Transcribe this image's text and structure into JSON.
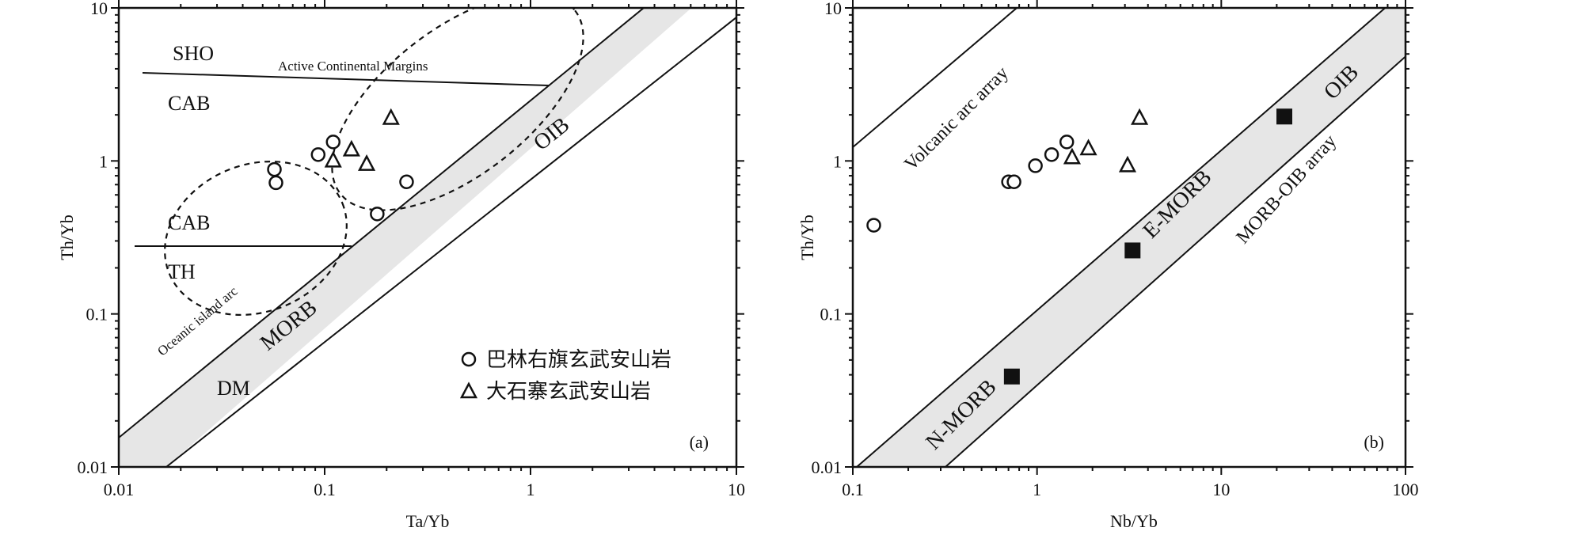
{
  "chart_data": [
    {
      "type": "scatter",
      "panel_label": "(a)",
      "xlabel": "Ta/Yb",
      "ylabel": "Th/Yb",
      "xscale": "log",
      "yscale": "log",
      "xlim": [
        0.01,
        10
      ],
      "ylim": [
        0.01,
        10
      ],
      "xticks": [
        "0.01",
        "0.1",
        "1",
        "10"
      ],
      "yticks": [
        "0.01",
        "0.1",
        "1",
        "10"
      ],
      "grid": false,
      "legend_position": "bottom-right",
      "series": [
        {
          "name": "巴林右旗玄武安山岩",
          "marker": "circle",
          "points": [
            [
              0.057,
              0.88
            ],
            [
              0.058,
              0.72
            ],
            [
              0.093,
              1.1
            ],
            [
              0.11,
              1.33
            ],
            [
              0.18,
              0.45
            ],
            [
              0.25,
              0.73
            ]
          ]
        },
        {
          "name": "大石寨玄武安山岩",
          "marker": "triangle",
          "points": [
            [
              0.11,
              1.0
            ],
            [
              0.135,
              1.18
            ],
            [
              0.16,
              0.95
            ],
            [
              0.21,
              1.9
            ]
          ]
        }
      ],
      "region_labels": [
        "SHO",
        "CAB",
        "CAB",
        "TH",
        "DM",
        "MORB",
        "OIB",
        "Active Continental Margins",
        "Oceanic island arc"
      ]
    },
    {
      "type": "scatter",
      "panel_label": "(b)",
      "xlabel": "Nb/Yb",
      "ylabel": "Th/Yb",
      "xscale": "log",
      "yscale": "log",
      "xlim": [
        0.1,
        100
      ],
      "ylim": [
        0.01,
        10
      ],
      "xticks": [
        "0.1",
        "1",
        "10",
        "100"
      ],
      "yticks": [
        "0.01",
        "0.1",
        "1",
        "10"
      ],
      "grid": false,
      "series": [
        {
          "marker": "circle",
          "points": [
            [
              0.13,
              0.38
            ],
            [
              0.7,
              0.73
            ],
            [
              0.75,
              0.73
            ],
            [
              0.98,
              0.93
            ],
            [
              1.2,
              1.1
            ],
            [
              1.45,
              1.33
            ]
          ]
        },
        {
          "marker": "triangle",
          "points": [
            [
              1.55,
              1.05
            ],
            [
              1.9,
              1.2
            ],
            [
              3.1,
              0.93
            ],
            [
              3.6,
              1.9
            ]
          ]
        },
        {
          "marker": "square",
          "points": [
            [
              0.73,
              0.039
            ],
            [
              3.3,
              0.26
            ],
            [
              22,
              1.95
            ]
          ]
        }
      ],
      "region_labels": [
        "Volcanic arc array",
        "MORB-OIB array",
        "OIB",
        "E-MORB",
        "N-MORB"
      ]
    }
  ]
}
